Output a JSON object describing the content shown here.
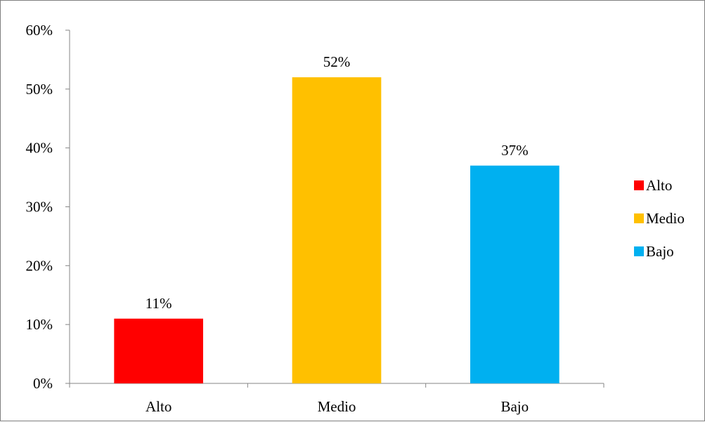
{
  "chart_data": {
    "type": "bar",
    "categories": [
      "Alto",
      "Medio",
      "Bajo"
    ],
    "values": [
      11,
      52,
      37
    ],
    "data_labels": [
      "11%",
      "52%",
      "37%"
    ],
    "colors": [
      "#ff0000",
      "#ffc000",
      "#00b0f0"
    ],
    "ylim": [
      0,
      60
    ],
    "y_ticks": [
      0,
      10,
      20,
      30,
      40,
      50,
      60
    ],
    "y_tick_labels": [
      "0%",
      "10%",
      "20%",
      "30%",
      "40%",
      "50%",
      "60%"
    ],
    "grid": false,
    "legend": {
      "position": "right",
      "entries": [
        "Alto",
        "Medio",
        "Bajo"
      ]
    }
  }
}
